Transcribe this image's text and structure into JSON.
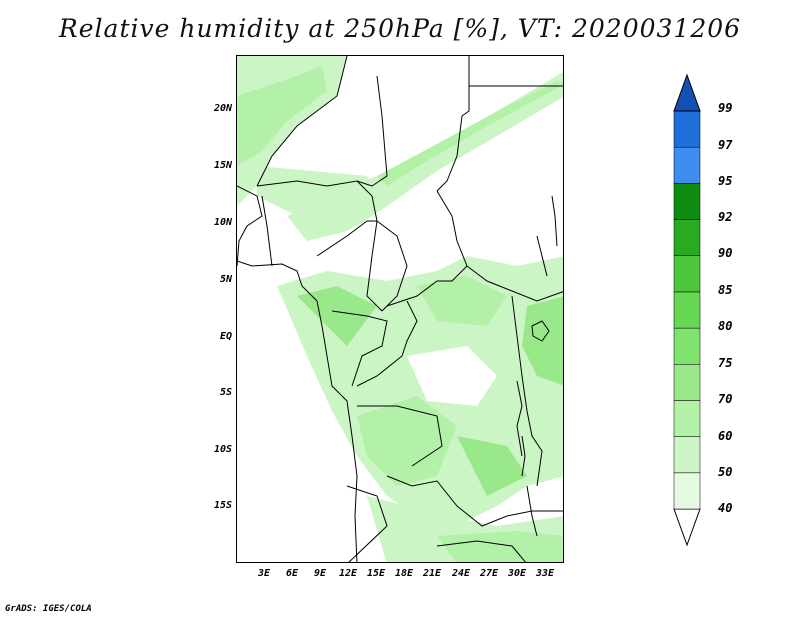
{
  "title": "Relative humidity at 250hPa [%], VT: 2020031206",
  "credit": "GrADS: IGES/COLA",
  "lat_labels": [
    "20N",
    "15N",
    "10N",
    "5N",
    "EQ",
    "5S",
    "10S",
    "15S"
  ],
  "lon_labels": [
    "3E",
    "6E",
    "9E",
    "12E",
    "15E",
    "18E",
    "21E",
    "24E",
    "27E",
    "30E",
    "33E"
  ],
  "colorbar": {
    "levels": [
      "40",
      "50",
      "60",
      "70",
      "75",
      "80",
      "85",
      "90",
      "92",
      "95",
      "97",
      "99"
    ],
    "colors": [
      "#ffffff",
      "#e6f9e3",
      "#ccf5c6",
      "#b3f0a8",
      "#99e98b",
      "#80e36e",
      "#66d854",
      "#4cc63a",
      "#2aaa20",
      "#0f8c0f",
      "#3d8ef0",
      "#1f6fd9",
      "#1450b4"
    ]
  },
  "chart_data": {
    "type": "heatmap",
    "title": "Relative humidity at 250hPa [%], VT: 2020031206",
    "variable": "Relative humidity",
    "units": "%",
    "level": "250hPa",
    "valid_time": "2020031206",
    "x_ticks": [
      "3E",
      "6E",
      "9E",
      "12E",
      "15E",
      "18E",
      "21E",
      "24E",
      "27E",
      "30E",
      "33E"
    ],
    "y_ticks": [
      "20N",
      "15N",
      "10N",
      "5N",
      "EQ",
      "5S",
      "10S",
      "15S"
    ],
    "lon_range": [
      0,
      34
    ],
    "lat_range": [
      -20,
      25
    ],
    "legend_position": "right",
    "color_levels": [
      40,
      50,
      60,
      70,
      75,
      80,
      85,
      90,
      92,
      95,
      97,
      99
    ]
  }
}
